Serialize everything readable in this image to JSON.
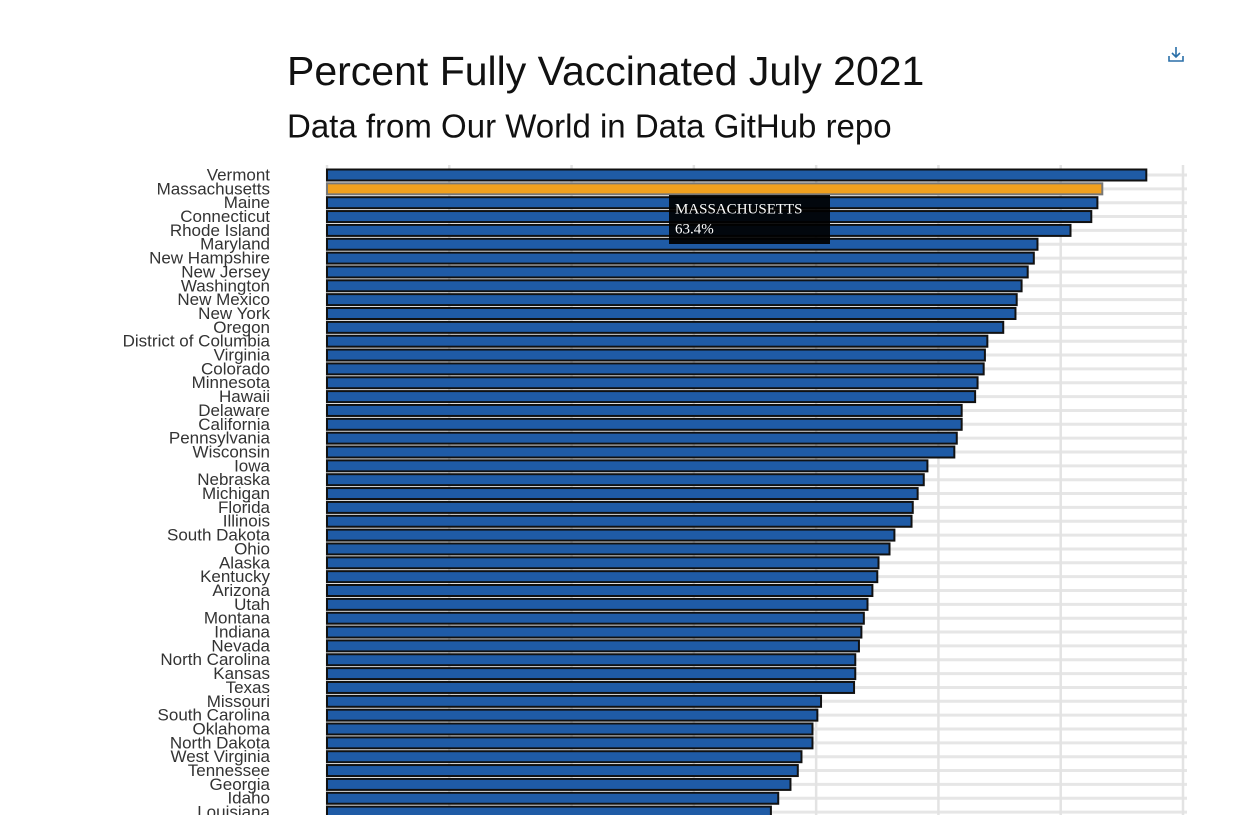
{
  "chart_data": {
    "type": "barh",
    "title": "Percent Fully Vaccinated July 2021",
    "subtitle": "Data from Our World in Data GitHub repo",
    "categories": [
      "Vermont",
      "Massachusetts",
      "Maine",
      "Connecticut",
      "Rhode Island",
      "Maryland",
      "New Hampshire",
      "New Jersey",
      "Washington",
      "New Mexico",
      "New York",
      "Oregon",
      "District of Columbia",
      "Virginia",
      "Colorado",
      "Minnesota",
      "Hawaii",
      "Delaware",
      "California",
      "Pennsylvania",
      "Wisconsin",
      "Iowa",
      "Nebraska",
      "Michigan",
      "Florida",
      "Illinois",
      "South Dakota",
      "Ohio",
      "Alaska",
      "Kentucky",
      "Arizona",
      "Utah",
      "Montana",
      "Indiana",
      "Nevada",
      "North Carolina",
      "Kansas",
      "Texas",
      "Missouri",
      "South Carolina",
      "Oklahoma",
      "North Dakota",
      "West Virginia",
      "Tennessee",
      "Georgia",
      "Idaho",
      "Louisiana"
    ],
    "values": [
      67.0,
      63.4,
      63.0,
      62.5,
      60.8,
      58.1,
      57.8,
      57.3,
      56.8,
      56.4,
      56.3,
      55.3,
      54.0,
      53.8,
      53.7,
      53.2,
      53.0,
      51.9,
      51.9,
      51.5,
      51.3,
      49.1,
      48.8,
      48.3,
      47.9,
      47.8,
      46.4,
      46.0,
      45.1,
      45.0,
      44.6,
      44.2,
      43.9,
      43.7,
      43.5,
      43.2,
      43.2,
      43.1,
      40.4,
      40.1,
      39.7,
      39.7,
      38.8,
      38.5,
      37.9,
      36.9,
      36.3
    ],
    "color": "#1f5ba6",
    "highlight_category": "Massachusetts",
    "highlight_color": "#f0a01e",
    "xlim": [
      0,
      70
    ],
    "xticks": [
      0,
      10,
      20,
      30,
      40,
      50,
      60,
      70
    ],
    "grid": true,
    "tooltip": {
      "title": "MASSACHUSETTS",
      "value_label": "63.4%"
    }
  }
}
